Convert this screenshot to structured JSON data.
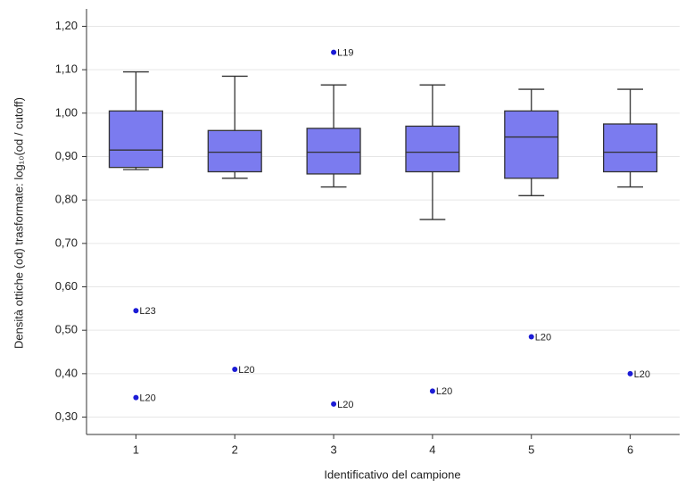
{
  "chart_data": {
    "type": "box",
    "x_label": "Identificativo del campione",
    "y_label": "Densità ottiche (od) trasformate: log₁₀(od / cutoff)",
    "categories": [
      "1",
      "2",
      "3",
      "4",
      "5",
      "6"
    ],
    "boxes": [
      {
        "whislo": 0.87,
        "q1": 0.875,
        "med": 0.915,
        "q3": 1.005,
        "whishi": 1.095,
        "outliers": [
          {
            "value": 0.545,
            "label": "L23"
          },
          {
            "value": 0.345,
            "label": "L20"
          }
        ]
      },
      {
        "whislo": 0.85,
        "q1": 0.865,
        "med": 0.91,
        "q3": 0.96,
        "whishi": 1.085,
        "outliers": [
          {
            "value": 0.41,
            "label": "L20"
          }
        ]
      },
      {
        "whislo": 0.83,
        "q1": 0.86,
        "med": 0.91,
        "q3": 0.965,
        "whishi": 1.065,
        "outliers": [
          {
            "value": 1.14,
            "label": "L19"
          },
          {
            "value": 0.33,
            "label": "L20"
          }
        ]
      },
      {
        "whislo": 0.755,
        "q1": 0.865,
        "med": 0.91,
        "q3": 0.97,
        "whishi": 1.065,
        "outliers": [
          {
            "value": 0.36,
            "label": "L20"
          }
        ]
      },
      {
        "whislo": 0.81,
        "q1": 0.85,
        "med": 0.945,
        "q3": 1.005,
        "whishi": 1.055,
        "outliers": [
          {
            "value": 0.485,
            "label": "L20"
          }
        ]
      },
      {
        "whislo": 0.83,
        "q1": 0.865,
        "med": 0.91,
        "q3": 0.975,
        "whishi": 1.055,
        "outliers": [
          {
            "value": 0.4,
            "label": "L20"
          }
        ]
      }
    ],
    "box_color": "#7b7bef",
    "outlier_color": "#1c1cd6",
    "ylim": [
      0.26,
      1.24
    ],
    "yticks": [
      {
        "value": 0.3,
        "label": "0,30"
      },
      {
        "value": 0.4,
        "label": "0,40"
      },
      {
        "value": 0.5,
        "label": "0,50"
      },
      {
        "value": 0.6,
        "label": "0,60"
      },
      {
        "value": 0.7,
        "label": "0,70"
      },
      {
        "value": 0.8,
        "label": "0,80"
      },
      {
        "value": 0.9,
        "label": "0,90"
      },
      {
        "value": 1.0,
        "label": "1,00"
      },
      {
        "value": 1.1,
        "label": "1,10"
      },
      {
        "value": 1.2,
        "label": "1,20"
      }
    ],
    "grid": true
  }
}
